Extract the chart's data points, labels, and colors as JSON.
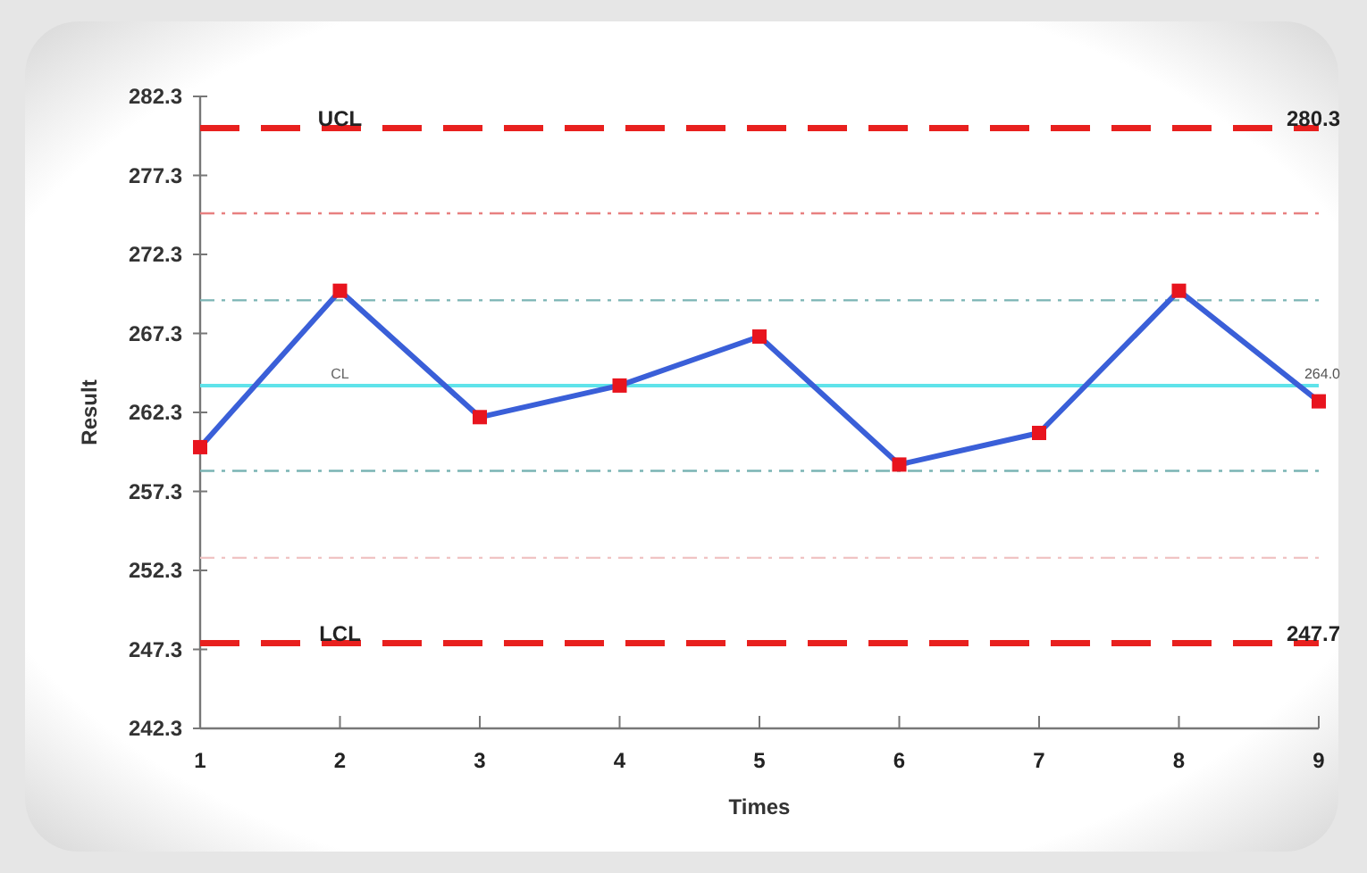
{
  "chart_data": {
    "type": "line",
    "xlabel": "Times",
    "ylabel": "Result",
    "x": [
      1,
      2,
      3,
      4,
      5,
      6,
      7,
      8,
      9
    ],
    "series": [
      {
        "color": "#3a5fd8",
        "values": [
          260.1,
          270.0,
          262.0,
          264.0,
          267.1,
          259.0,
          261.0,
          270.0,
          263.0
        ]
      }
    ],
    "xlim": [
      1,
      9
    ],
    "xticks": [
      1,
      2,
      3,
      4,
      5,
      6,
      7,
      8,
      9
    ],
    "ylim": [
      242.3,
      282.3
    ],
    "yticks": [
      {
        "value": 242.3,
        "label": "242.3"
      },
      {
        "value": 247.3,
        "label": "247.3"
      },
      {
        "value": 252.3,
        "label": "252.3"
      },
      {
        "value": 257.3,
        "label": "257.3"
      },
      {
        "value": 262.3,
        "label": "262.3"
      },
      {
        "value": 267.3,
        "label": "267.3"
      },
      {
        "value": 272.3,
        "label": "272.3"
      },
      {
        "value": 277.3,
        "label": "277.3"
      },
      {
        "value": 282.3,
        "label": "282.3"
      }
    ],
    "ref_lines": [
      {
        "axis": "y",
        "value": 280.3,
        "label": "UCL",
        "color": "#e8201e",
        "line_style": "dashed"
      },
      {
        "axis": "y",
        "value": 274.9,
        "color": "#e88080",
        "line_style": "dashdot"
      },
      {
        "axis": "y",
        "value": 269.4,
        "color": "#7ab4b4",
        "line_style": "dashdot"
      },
      {
        "axis": "y",
        "value": 264.0,
        "label": "CL",
        "color": "#5fe3ea",
        "line_style": "solid"
      },
      {
        "axis": "y",
        "value": 258.6,
        "color": "#7ab4b4",
        "line_style": "dashdot"
      },
      {
        "axis": "y",
        "value": 253.1,
        "color": "#f0c4c4",
        "line_style": "dashdot"
      },
      {
        "axis": "y",
        "value": 247.7,
        "label": "LCL",
        "color": "#e8201e",
        "line_style": "dashed"
      }
    ],
    "annotations": [
      {
        "text": "280.3",
        "y": 280.3
      },
      {
        "text": "264.0",
        "y": 264.0
      },
      {
        "text": "247.7",
        "y": 247.7
      }
    ],
    "grid": false,
    "marker": "square",
    "line_style": "solid"
  }
}
